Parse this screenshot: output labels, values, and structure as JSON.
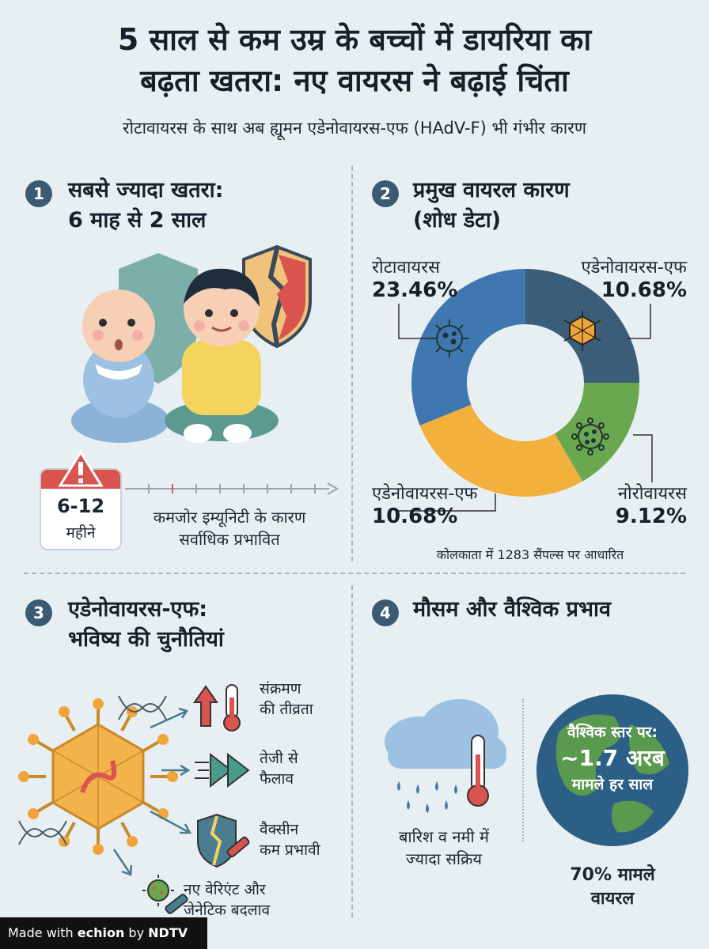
{
  "header": {
    "title_line1": "5 साल से कम उम्र के बच्चों में डायरिया का",
    "title_line2": "बढ़ता खतरा: नए वायरस ने बढ़ाई चिंता",
    "subtitle": "रोटावायरस के साथ अब ह्यूमन एडेनोवायरस-एफ (HAdV-F) भी गंभीर कारण"
  },
  "section1": {
    "number": "1",
    "title_line1": "सबसे ज्यादा खतरा:",
    "title_line2": "6 माह से 2 साल",
    "calendar_value": "6-12",
    "calendar_unit": "महीने",
    "note_line1": "कमजोर इम्यूनिटी के कारण",
    "note_line2": "सर्वाधिक प्रभावित"
  },
  "section2": {
    "number": "2",
    "title_line1": "प्रमुख वायरल कारण",
    "title_line2": "(शोध डेटा)",
    "segments": [
      {
        "label": "रोटावायरस",
        "value": "23.46%",
        "color": "#3f78b0"
      },
      {
        "label": "एडेनोवायरस-एफ",
        "value": "10.68%",
        "color": "#3c5d78"
      },
      {
        "label": "नोरोवायरस",
        "value": "9.12%",
        "color": "#6aa84f"
      },
      {
        "label": "एडेनोवायरस-एफ",
        "value": "10.68%",
        "color": "#f2b03d"
      }
    ],
    "footnote": "कोलकाता में 1283 सैंपल्स पर आधारित"
  },
  "section3": {
    "number": "3",
    "title_line1": "एडेनोवायरस-एफ:",
    "title_line2": "भविष्य की चुनौतियां",
    "items": [
      {
        "line1": "संक्रमण",
        "line2": "की तीव्रता"
      },
      {
        "line1": "तेजी से",
        "line2": "फैलाव"
      },
      {
        "line1": "वैक्सीन",
        "line2": "कम प्रभावी"
      },
      {
        "line1": "नए वेरिएंट और",
        "line2": "जेनेटिक बदलाव"
      }
    ]
  },
  "section4": {
    "number": "4",
    "title": "मौसम और वैश्विक प्रभाव",
    "rain_line1": "बारिश व नमी में",
    "rain_line2": "ज्यादा सक्रिय",
    "globe_line1": "वैश्विक स्तर पर:",
    "globe_line2": "~1.7 अरब",
    "globe_line3": "मामले हर साल",
    "viral_line1": "70% मामले",
    "viral_line2": "वायरल"
  },
  "footer": {
    "made_with": "Made with",
    "brand": "echion",
    "by": "by",
    "partner": "NDTV"
  }
}
